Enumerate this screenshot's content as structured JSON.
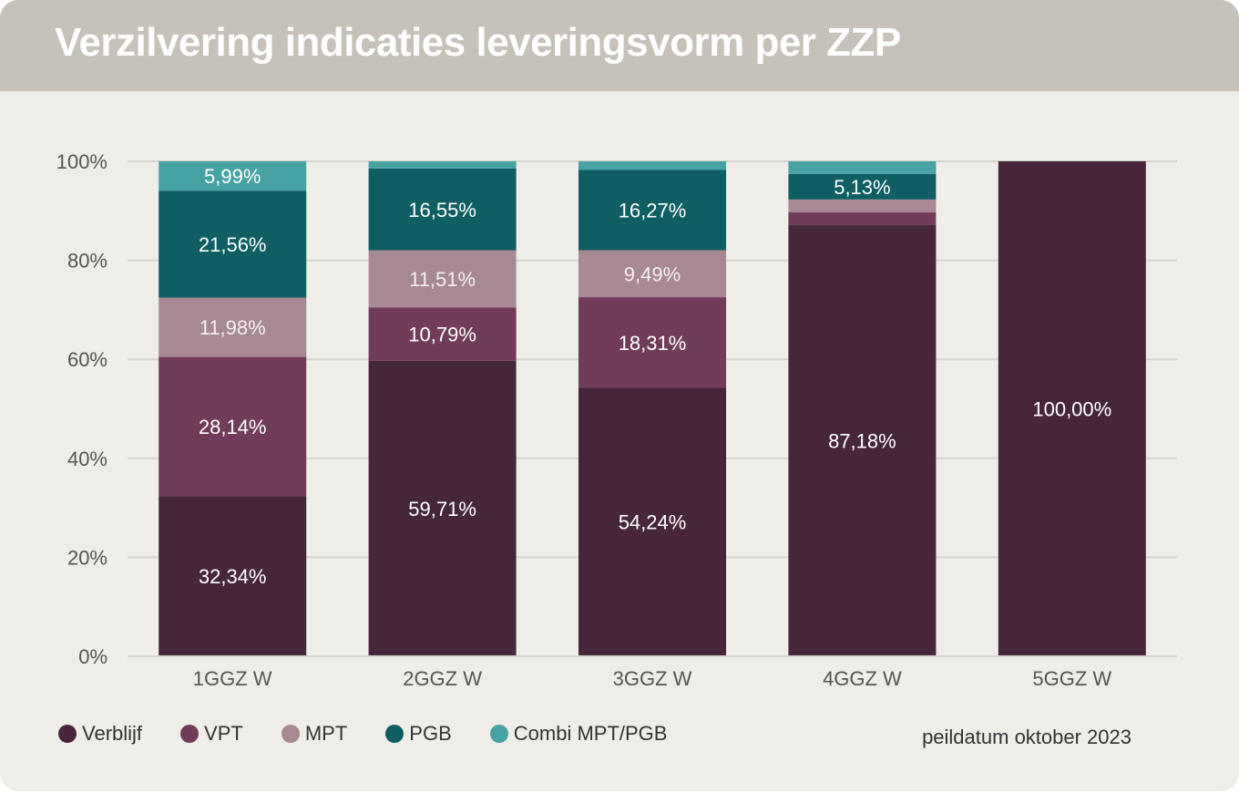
{
  "title": "Verzilvering indicaties leveringsvorm per ZZP",
  "note": "peildatum oktober 2023",
  "colors": {
    "card_bg": "#efede8",
    "title_bar": "#c6c1b9",
    "grid": "#d6d3ce",
    "axis_text": "#555555"
  },
  "chart_data": {
    "type": "bar",
    "stacked": true,
    "categories": [
      "1GGZ W",
      "2GGZ W",
      "3GGZ W",
      "4GGZ W",
      "5GGZ W"
    ],
    "ylim": [
      0,
      100
    ],
    "yticks": [
      0,
      20,
      40,
      60,
      80,
      100
    ],
    "ytick_labels": [
      "0%",
      "20%",
      "40%",
      "60%",
      "80%",
      "100%"
    ],
    "grid": true,
    "legend_position": "bottom-left",
    "series": [
      {
        "name": "Verblijf",
        "color": "#47263b",
        "values": [
          32.34,
          59.71,
          54.24,
          87.18,
          100.0
        ],
        "labels": [
          "32,34%",
          "59,71%",
          "54,24%",
          "87,18%",
          "100,00%"
        ]
      },
      {
        "name": "VPT",
        "color": "#713c5a",
        "values": [
          28.14,
          10.79,
          18.31,
          2.56,
          0
        ],
        "labels": [
          "28,14%",
          "10,79%",
          "18,31%",
          "",
          ""
        ]
      },
      {
        "name": "MPT",
        "color": "#a88893",
        "values": [
          11.98,
          11.51,
          9.49,
          2.56,
          0
        ],
        "labels": [
          "11,98%",
          "11,51%",
          "9,49%",
          "",
          ""
        ]
      },
      {
        "name": "PGB",
        "color": "#0e5e63",
        "values": [
          21.56,
          16.55,
          16.27,
          5.13,
          0
        ],
        "labels": [
          "21,56%",
          "16,55%",
          "16,27%",
          "5,13%",
          ""
        ]
      },
      {
        "name": "Combi MPT/PGB",
        "color": "#47a2a3",
        "values": [
          5.99,
          1.44,
          1.69,
          2.57,
          0
        ],
        "labels": [
          "5,99%",
          "",
          "",
          "",
          ""
        ]
      }
    ]
  }
}
